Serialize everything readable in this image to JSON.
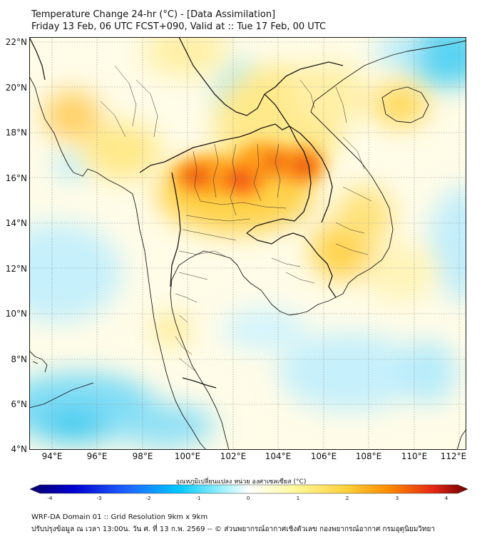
{
  "header": {
    "line1": "Temperature Change 24-hr (°C) - [Data Assimilation]",
    "line2": "Friday 13 Feb, 06 UTC FCST+090, Valid at :: Tue 17 Feb, 00 UTC"
  },
  "map": {
    "lat_labels": [
      "22°N",
      "20°N",
      "18°N",
      "16°N",
      "14°N",
      "12°N",
      "10°N",
      "8°N",
      "6°N",
      "4°N"
    ],
    "lon_labels": [
      "94°E",
      "96°E",
      "98°E",
      "100°E",
      "102°E",
      "104°E",
      "106°E",
      "108°E",
      "110°E",
      "112°E"
    ],
    "lat_range": [
      4,
      22.2
    ],
    "lon_range": [
      93,
      112.3
    ],
    "colors": {
      "land_border": "#1a1a1a",
      "grid": "#888888",
      "warm_max": "#d81e1e",
      "cold_max": "#00e0ff"
    }
  },
  "colorbar": {
    "title": "อุณหภูมิเปลี่ยนแปลง หน่วย องศาเซลเซียส (°C)",
    "ticks": [
      "-4",
      "-3",
      "-2",
      "-1",
      "0",
      "1",
      "2",
      "3",
      "4"
    ],
    "range": [
      -4,
      4
    ],
    "colors": [
      "#08006b",
      "#0000d0",
      "#1e64ff",
      "#00c8ff",
      "#9ef2ff",
      "#ffffff",
      "#fffaa0",
      "#ffd23c",
      "#ff8c00",
      "#e62814",
      "#6e0000"
    ]
  },
  "footer": {
    "line1": "WRF-DA Domain 01 :: Grid Resolution 9km x 9km",
    "line2": "ปรับปรุงข้อมูล ณ เวลา 13:00น. วัน ศ. ที่ 13 ก.พ. 2569 -- © ส่วนพยากรณ์อากาศเชิงตัวเลข กองพยากรณ์อากาศ กรมอุตุนิยมวิทยา"
  }
}
